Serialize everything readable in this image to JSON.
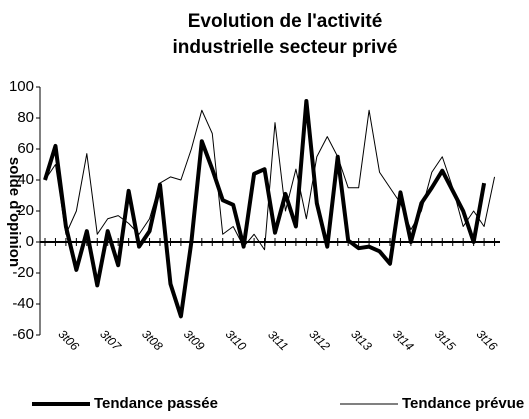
{
  "chart_data": {
    "type": "line",
    "title": [
      "Evolution de l'activité",
      "industrielle  secteur privé"
    ],
    "y_label": "solde d'opinion",
    "categories": [
      null,
      null,
      null,
      "3t06",
      null,
      null,
      null,
      "3t07",
      null,
      null,
      null,
      "3t08",
      null,
      null,
      null,
      "3t09",
      null,
      null,
      null,
      "3t10",
      null,
      null,
      null,
      "3t11",
      null,
      null,
      null,
      "3t12",
      null,
      null,
      null,
      "3t13",
      null,
      null,
      null,
      "3t14",
      null,
      null,
      null,
      "3t15",
      null,
      null,
      null,
      "3t16"
    ],
    "series": [
      {
        "name": "Tendance passée",
        "color": "#000000",
        "values": [
          40,
          62,
          10,
          -18,
          7,
          -28,
          7,
          -15,
          33,
          -3,
          7,
          37,
          -27,
          -48,
          0,
          65,
          47,
          27,
          24,
          -3,
          44,
          47,
          6,
          31,
          10,
          91,
          25,
          -3,
          55,
          1,
          -4,
          -3,
          -6,
          -14,
          32,
          0,
          25,
          35,
          46,
          33,
          20,
          0,
          38,
          null
        ]
      },
      {
        "name": "Tendance prévue",
        "color": "#000000",
        "values": [
          40,
          50,
          5,
          20,
          57,
          5,
          15,
          17,
          12,
          5,
          15,
          38,
          42,
          40,
          60,
          85,
          70,
          5,
          10,
          -3,
          5,
          -5,
          77,
          20,
          47,
          15,
          55,
          68,
          55,
          35,
          35,
          85,
          45,
          35,
          25,
          8,
          20,
          45,
          55,
          35,
          10,
          20,
          10,
          42
        ]
      }
    ],
    "ylim": [
      -60,
      100
    ],
    "yticks": [
      -60,
      -40,
      -20,
      0,
      20,
      40,
      60,
      80,
      100
    ]
  }
}
